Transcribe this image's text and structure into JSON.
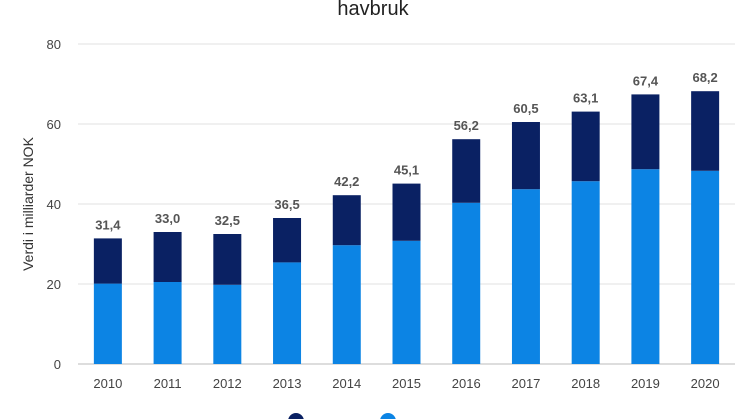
{
  "chart_data": {
    "type": "bar",
    "stacked": true,
    "title": "havbruk",
    "ylabel": "Verdi i milliarder NOK",
    "xlabel": "",
    "ylim": [
      0,
      80
    ],
    "yticks": [
      0,
      20,
      40,
      60,
      80
    ],
    "grid": true,
    "legend_position": "bottom",
    "categories": [
      "2010",
      "2011",
      "2012",
      "2013",
      "2014",
      "2015",
      "2016",
      "2017",
      "2018",
      "2019",
      "2020"
    ],
    "series": [
      {
        "name": "",
        "color": "#0c84e4",
        "values": [
          20.1,
          20.5,
          19.8,
          25.4,
          29.7,
          30.8,
          40.3,
          43.7,
          45.7,
          48.7,
          48.3
        ]
      },
      {
        "name": "",
        "color": "#0a2163",
        "values": [
          11.3,
          12.5,
          12.7,
          11.1,
          12.5,
          14.3,
          15.9,
          16.8,
          17.4,
          18.7,
          19.9
        ]
      }
    ],
    "totals": [
      "31,4",
      "33,0",
      "32,5",
      "36,5",
      "42,2",
      "45,1",
      "56,2",
      "60,5",
      "63,1",
      "67,4",
      "68,2"
    ]
  }
}
